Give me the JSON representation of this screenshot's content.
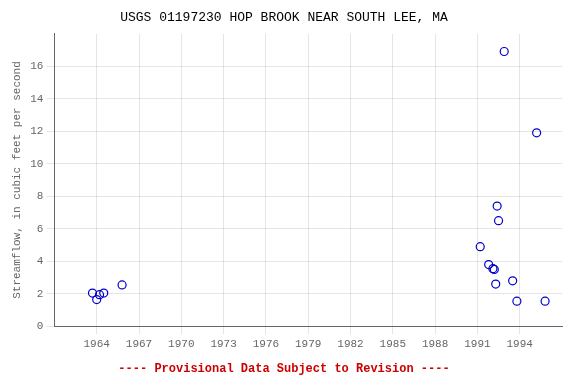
{
  "chart_data": {
    "type": "scatter",
    "title": "USGS 01197230 HOP BROOK NEAR SOUTH LEE, MA",
    "y_label": "Streamflow, in cubic feet per second",
    "annotations": [
      {
        "text": "---- Provisional Data Subject to Revision ----",
        "color": "#cc0000"
      }
    ],
    "x": [
      1963.7,
      1964.0,
      1964.2,
      1964.5,
      1965.8,
      1991.2,
      1991.8,
      1992.1,
      1992.2,
      1992.3,
      1992.4,
      1992.5,
      1992.9,
      1993.5,
      1993.8,
      1995.2,
      1995.8
    ],
    "values": [
      2.05,
      1.65,
      1.95,
      2.05,
      2.55,
      4.9,
      3.8,
      3.55,
      3.5,
      2.6,
      7.4,
      6.5,
      16.9,
      2.8,
      1.55,
      11.9,
      1.55
    ],
    "color": "#0000cc",
    "marker": "circle",
    "xlim": [
      1961,
      1997
    ],
    "ylim": [
      0,
      18
    ],
    "xticks": [
      1964,
      1967,
      1970,
      1973,
      1976,
      1979,
      1982,
      1985,
      1988,
      1991,
      1994
    ],
    "yticks": [
      0,
      2,
      4,
      6,
      8,
      10,
      12,
      14,
      16
    ],
    "grid": true
  }
}
